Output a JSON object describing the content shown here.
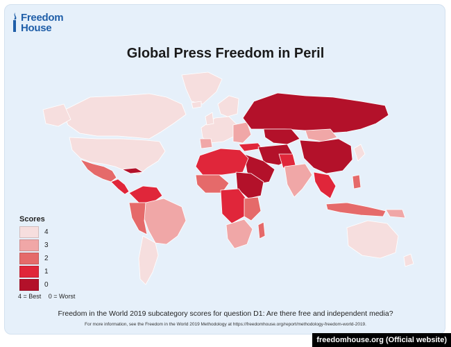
{
  "brand": {
    "line1": "Freedom",
    "line2": "House",
    "color": "#1f5ea8"
  },
  "title": "Global Press Freedom in Peril",
  "legend": {
    "title": "Scores",
    "items": [
      {
        "label": "4",
        "color": "#f6dede"
      },
      {
        "label": "3",
        "color": "#f0a7a7"
      },
      {
        "label": "2",
        "color": "#e56a6a"
      },
      {
        "label": "1",
        "color": "#e0263a"
      },
      {
        "label": "0",
        "color": "#b3112a"
      }
    ],
    "best_note": "4 = Best",
    "worst_note": "0 = Worst"
  },
  "caption": "Freedom in the World 2019 subcategory scores for question D1: Are there free and independent media?",
  "subcaption": "For more information, see the Freedom in the World 2019 Methodology at https://freedomhouse.org/report/methodology-freedom-world-2019.",
  "credit": "freedomhouse.org (Official website)",
  "map": {
    "ocean_color": "#e6f0fa",
    "border_color": "#ffffff"
  }
}
